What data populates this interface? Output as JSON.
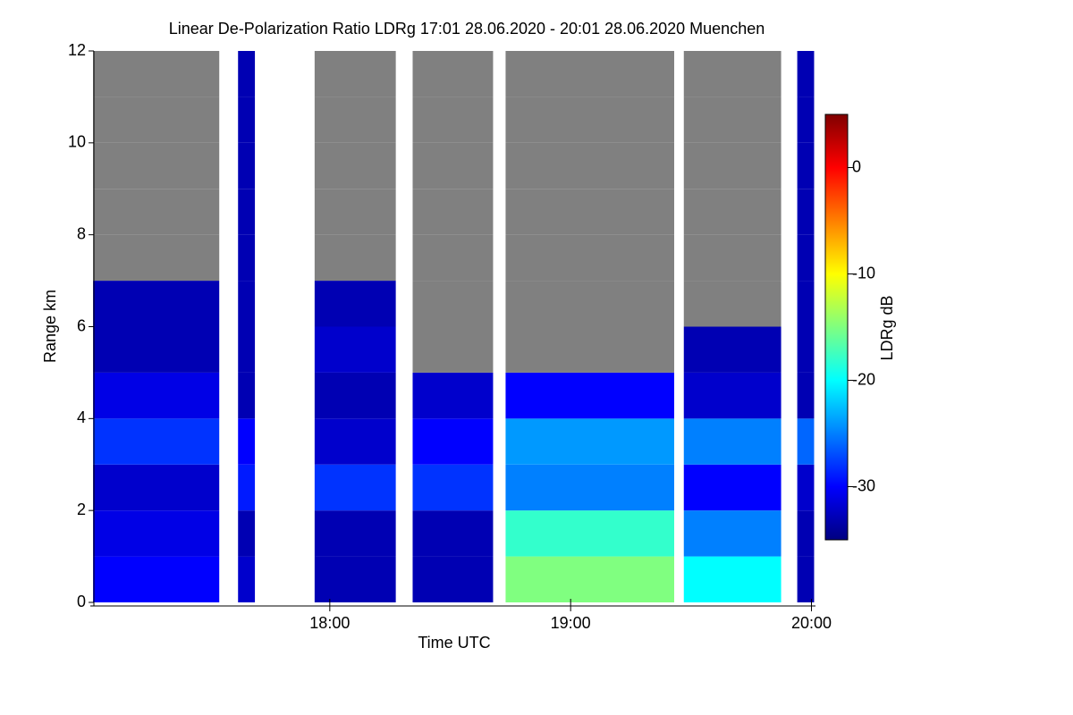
{
  "chart_data": {
    "type": "heatmap",
    "title": "Linear De-Polarization Ratio LDRg   17:01 28.06.2020 - 20:01 28.06.2020 Muenchen",
    "xlabel": "Time UTC",
    "ylabel": "Range km",
    "colorbar_label": "LDRg dB",
    "colormap": "jet",
    "missing_color": "#808080",
    "xlim": [
      17.0167,
      20.0167
    ],
    "xticks": [
      {
        "value": 18,
        "label": "18:00"
      },
      {
        "value": 19,
        "label": "19:00"
      },
      {
        "value": 20,
        "label": "20:00"
      }
    ],
    "ylim": [
      0,
      12
    ],
    "yticks": [
      0,
      2,
      4,
      6,
      8,
      10,
      12
    ],
    "zlim": [
      -35,
      5
    ],
    "zticks": [
      -30,
      -20,
      -10,
      0
    ],
    "ybins": [
      0,
      1,
      2,
      3,
      4,
      5,
      6,
      7,
      8,
      9,
      10,
      11,
      12
    ],
    "columns": [
      {
        "start": 17.017,
        "end": 17.541,
        "z": [
          -30,
          -31,
          -32,
          -28,
          -31,
          -33,
          -33,
          null,
          null,
          null,
          null,
          null
        ]
      },
      {
        "start": 17.619,
        "end": 17.689,
        "z": [
          -32,
          -33,
          -29,
          -30,
          -33,
          -33,
          -33,
          -33,
          -33,
          -33,
          -33,
          -33
        ]
      },
      {
        "start": 17.937,
        "end": 18.274,
        "z": [
          -33,
          -33,
          -28,
          -32,
          -33,
          -32,
          -33,
          null,
          null,
          null,
          null,
          null
        ]
      },
      {
        "start": 18.344,
        "end": 18.678,
        "z": [
          -33,
          -33,
          -28,
          -30,
          -32,
          null,
          null,
          null,
          null,
          null,
          null,
          null
        ]
      },
      {
        "start": 18.73,
        "end": 19.43,
        "z": [
          -15,
          -18,
          -25,
          -24,
          -30,
          null,
          null,
          null,
          null,
          null,
          null,
          null
        ]
      },
      {
        "start": 19.47,
        "end": 19.874,
        "z": [
          -20,
          -25,
          -30,
          -25,
          -32,
          -33,
          null,
          null,
          null,
          null,
          null,
          null
        ]
      },
      {
        "start": 19.941,
        "end": 20.011,
        "z": [
          -33,
          -33,
          -32,
          -26,
          -33,
          -33,
          -33,
          -33,
          -33,
          -33,
          -33,
          -33
        ]
      }
    ]
  }
}
